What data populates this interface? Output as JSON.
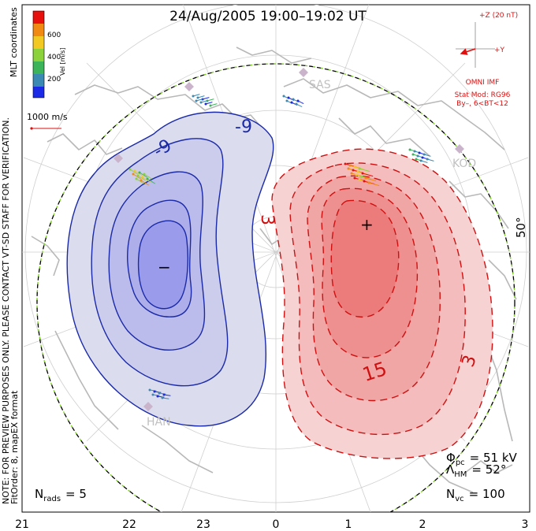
{
  "title": "24/Aug/2005 19:00–19:02 UT",
  "coordinate_system": "MLT coordinates",
  "colorbar": {
    "label": "Vel [m/s]",
    "ticks": [
      "600",
      "400",
      "200"
    ],
    "colors": [
      "#e8100c",
      "#f08a12",
      "#f2c823",
      "#8cd23c",
      "#3cb45a",
      "#3a8ab4",
      "#1a2ae6"
    ]
  },
  "scale_vector": "1000 m/s",
  "imf": {
    "z_label": "+Z (20 nT)",
    "y_label": "+Y",
    "source": "OMNI IMF",
    "model": "Stat Mod: RG96",
    "condition": "By–, 6<BT<12",
    "color": "#dd1010"
  },
  "notice": "NOTE: FOR PREVIEW PURPOSES ONLY. PLEASE CONTACT VT-SD STAFF FOR VERIFICATION.",
  "fit_info": "FitOrder: 8, mapEX format",
  "stations": [
    "SAS",
    "KOD",
    "HAN"
  ],
  "latitude_label": "50°",
  "contour_labels": {
    "negative": [
      "-9",
      "-9"
    ],
    "positive": [
      "3",
      "15",
      "3"
    ]
  },
  "markers": {
    "min": "−",
    "max": "+"
  },
  "stats": {
    "phi_pc_symbol": "Φ",
    "phi_pc_sub": "pc",
    "phi_pc_value": "= 51 kV",
    "lambda_symbol": "Λ",
    "lambda_sub": "HM",
    "lambda_value": "= 52°",
    "nvc_symbol": "N",
    "nvc_sub": "vc",
    "nvc_value": "= 100",
    "nrads_symbol": "N",
    "nrads_sub": "rads",
    "nrads_value": "= 5"
  },
  "mlt_axis": [
    "21",
    "22",
    "23",
    "0",
    "1",
    "2",
    "3"
  ]
}
